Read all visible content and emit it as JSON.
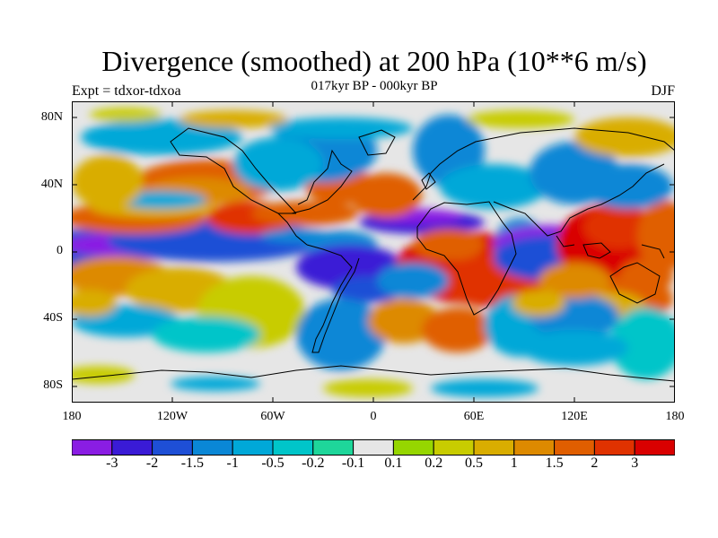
{
  "title": "Divergence (smoothed) at 200 hPa (10**6 m/s)",
  "subtitle": "017kyr BP - 000kyr BP",
  "experiment": "Expt = tdxor-tdxoa",
  "season": "DJF",
  "lat_ticks": [
    "80N",
    "40N",
    "0",
    "40S",
    "80S"
  ],
  "lon_ticks": [
    "180",
    "120W",
    "60W",
    "0",
    "60E",
    "120E",
    "180"
  ],
  "colorbar": {
    "labels": [
      "-3",
      "-2",
      "-1.5",
      "-1",
      "-0.5",
      "-0.2",
      "-0.1",
      "0.1",
      "0.2",
      "0.5",
      "1",
      "1.5",
      "2",
      "3"
    ],
    "colors": [
      "#8a1de3",
      "#3a1bd6",
      "#1e4fd6",
      "#0a87d6",
      "#00a8d8",
      "#00c5c9",
      "#1ed69a",
      "#e6e6e6",
      "#96d600",
      "#c8cc00",
      "#d9ad00",
      "#dd8a00",
      "#e05e00",
      "#e03200",
      "#d90000"
    ]
  }
}
